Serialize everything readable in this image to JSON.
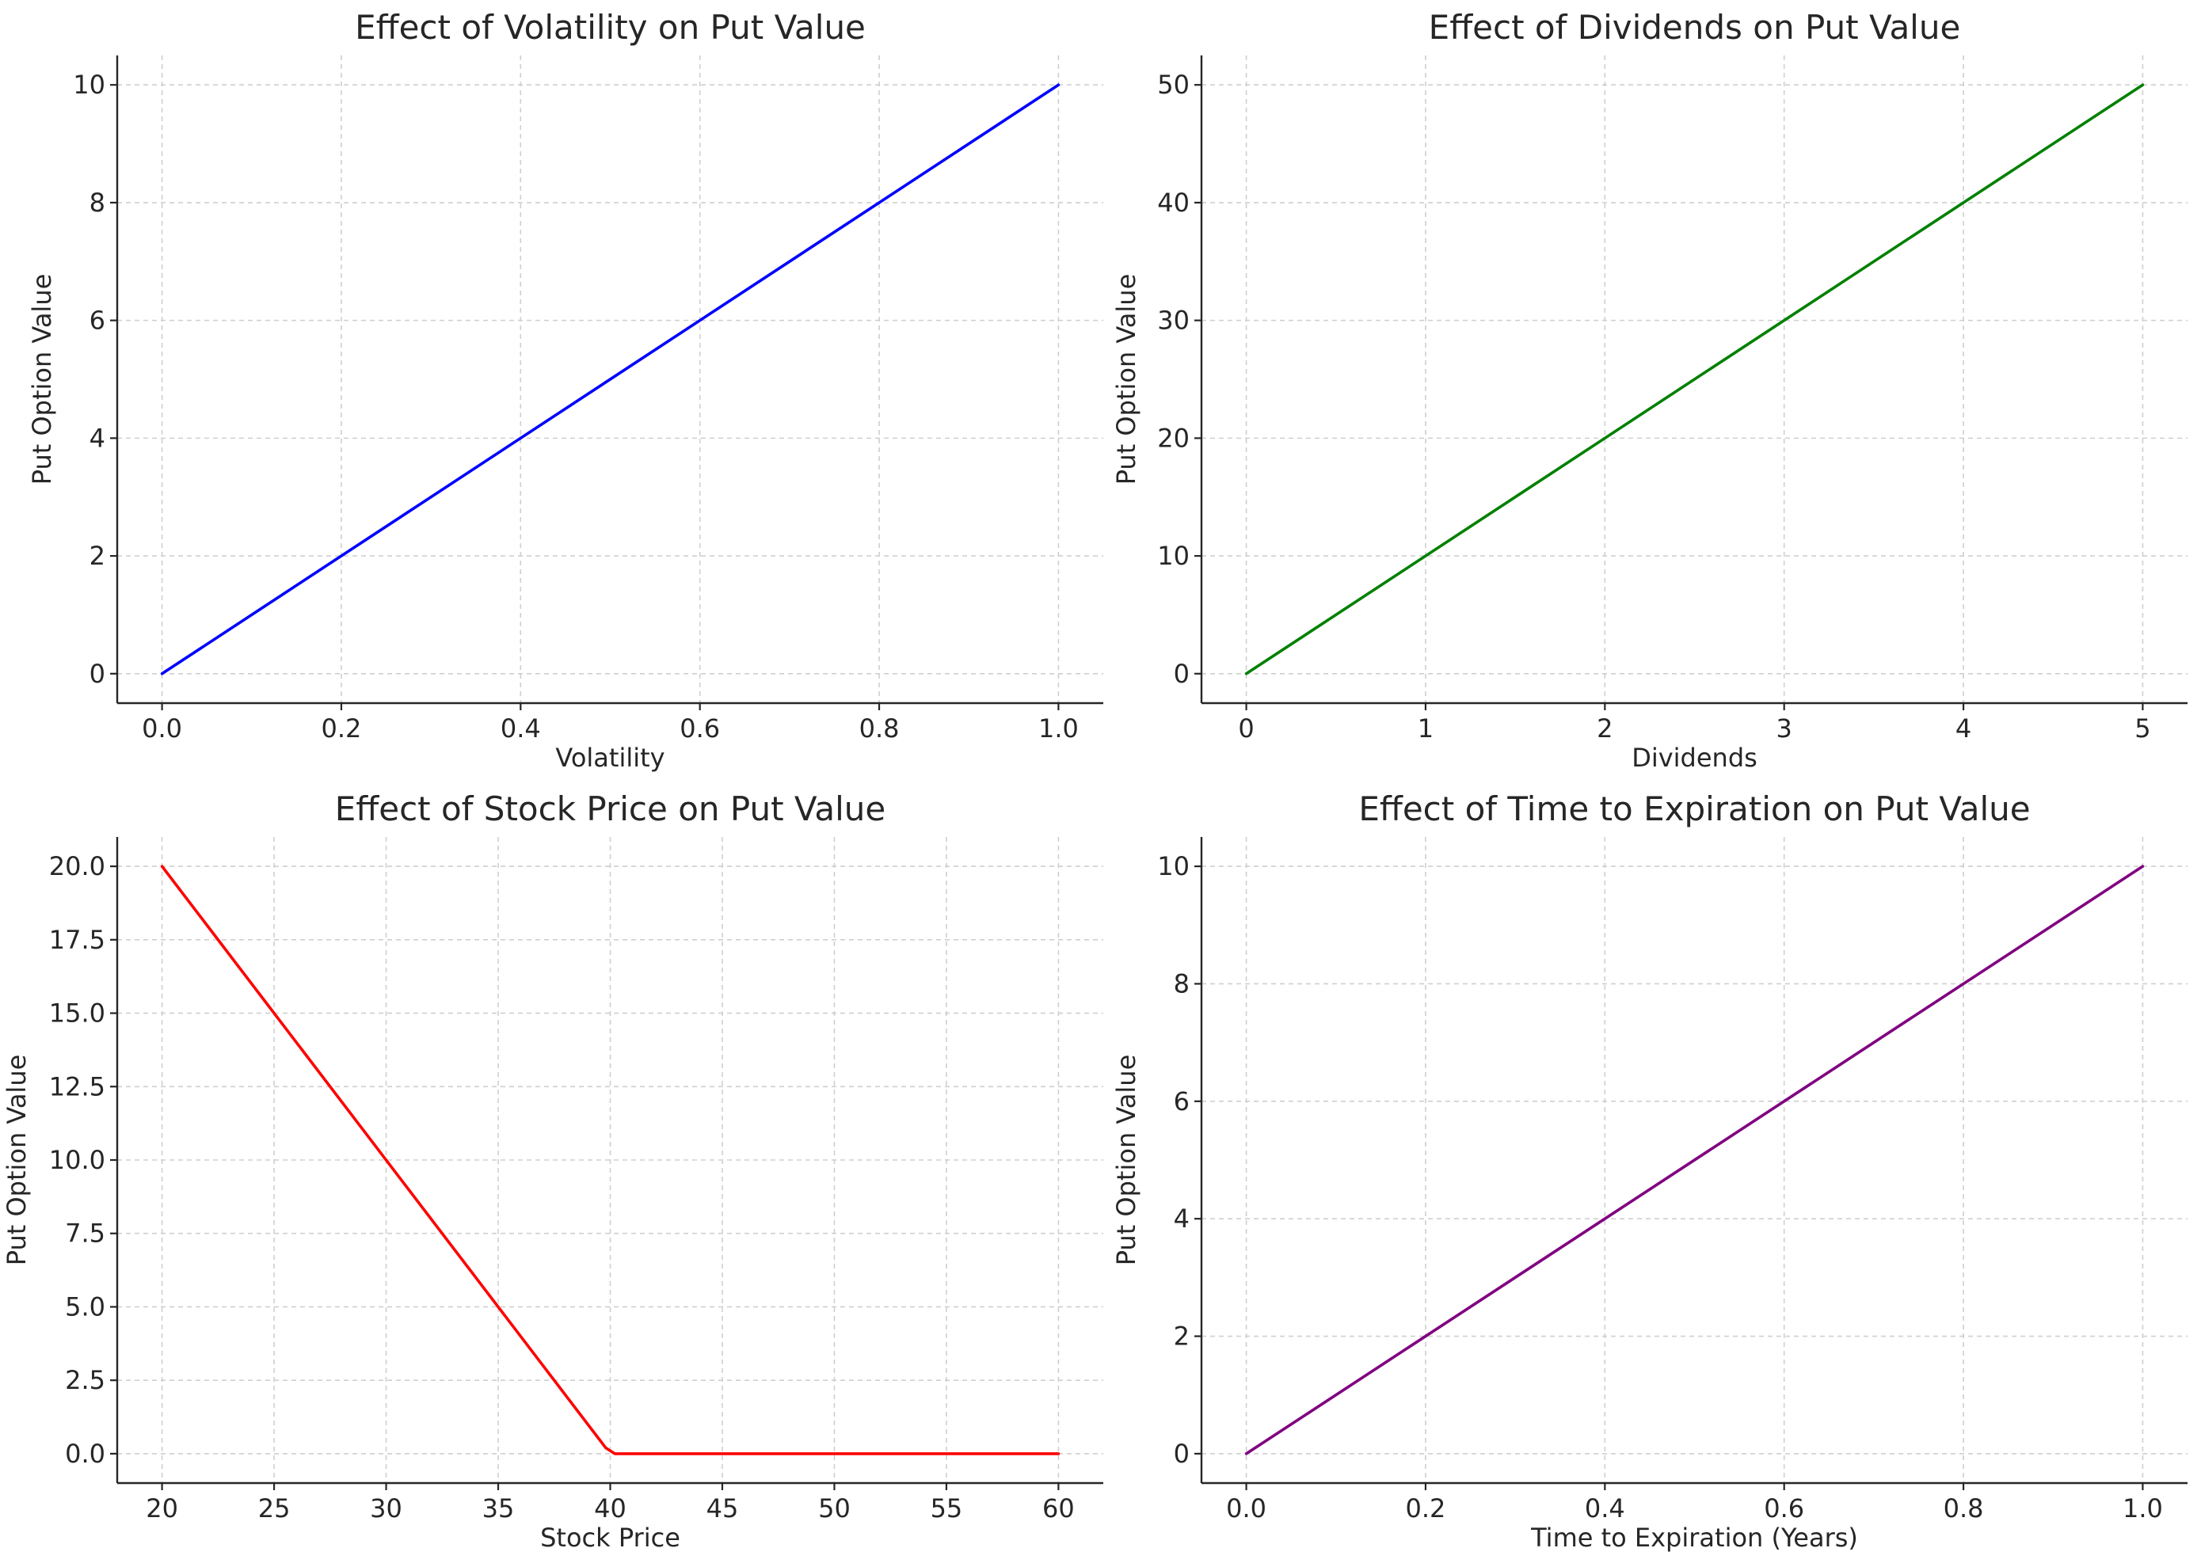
{
  "chart_data": [
    {
      "type": "line",
      "title": "Effect of Volatility on Put Value",
      "xlabel": "Volatility",
      "ylabel": "Put Option Value",
      "xlim": [
        -0.05,
        1.05
      ],
      "ylim": [
        -0.5,
        10.5
      ],
      "xticks": [
        0.0,
        0.2,
        0.4,
        0.6,
        0.8,
        1.0
      ],
      "xtick_labels": [
        "0.0",
        "0.2",
        "0.4",
        "0.6",
        "0.8",
        "1.0"
      ],
      "yticks": [
        0,
        2,
        4,
        6,
        8,
        10
      ],
      "ytick_labels": [
        "0",
        "2",
        "4",
        "6",
        "8",
        "10"
      ],
      "grid": true,
      "series": [
        {
          "color": "#0000ff",
          "x": [
            0.0,
            1.0
          ],
          "y": [
            0,
            10
          ]
        }
      ]
    },
    {
      "type": "line",
      "title": "Effect of Dividends on Put Value",
      "xlabel": "Dividends",
      "ylabel": "Put Option Value",
      "xlim": [
        -0.25,
        5.25
      ],
      "ylim": [
        -2.5,
        52.5
      ],
      "xticks": [
        0,
        1,
        2,
        3,
        4,
        5
      ],
      "xtick_labels": [
        "0",
        "1",
        "2",
        "3",
        "4",
        "5"
      ],
      "yticks": [
        0,
        10,
        20,
        30,
        40,
        50
      ],
      "ytick_labels": [
        "0",
        "10",
        "20",
        "30",
        "40",
        "50"
      ],
      "grid": true,
      "series": [
        {
          "color": "#008000",
          "x": [
            0,
            5
          ],
          "y": [
            0,
            50
          ]
        }
      ]
    },
    {
      "type": "line",
      "title": "Effect of Stock Price on Put Value",
      "xlabel": "Stock Price",
      "ylabel": "Put Option Value",
      "xlim": [
        18,
        62
      ],
      "ylim": [
        -1.0,
        21.0
      ],
      "xticks": [
        20,
        25,
        30,
        35,
        40,
        45,
        50,
        55,
        60
      ],
      "xtick_labels": [
        "20",
        "25",
        "30",
        "35",
        "40",
        "45",
        "50",
        "55",
        "60"
      ],
      "yticks": [
        0,
        2.5,
        5,
        7.5,
        10,
        12.5,
        15,
        17.5,
        20
      ],
      "ytick_labels": [
        "0.0",
        "2.5",
        "5.0",
        "7.5",
        "10.0",
        "12.5",
        "15.0",
        "17.5",
        "20.0"
      ],
      "grid": true,
      "series": [
        {
          "color": "#ff0000",
          "x": [
            20,
            39.8,
            40.2,
            60
          ],
          "y": [
            20,
            0.2,
            0,
            0
          ]
        }
      ]
    },
    {
      "type": "line",
      "title": "Effect of Time to Expiration on Put Value",
      "xlabel": "Time to Expiration (Years)",
      "ylabel": "Put Option Value",
      "xlim": [
        -0.05,
        1.05
      ],
      "ylim": [
        -0.5,
        10.5
      ],
      "xticks": [
        0.0,
        0.2,
        0.4,
        0.6,
        0.8,
        1.0
      ],
      "xtick_labels": [
        "0.0",
        "0.2",
        "0.4",
        "0.6",
        "0.8",
        "1.0"
      ],
      "yticks": [
        0,
        2,
        4,
        6,
        8,
        10
      ],
      "ytick_labels": [
        "0",
        "2",
        "4",
        "6",
        "8",
        "10"
      ],
      "grid": true,
      "series": [
        {
          "color": "#800080",
          "x": [
            0.0,
            1.0
          ],
          "y": [
            0,
            10
          ]
        }
      ]
    }
  ]
}
